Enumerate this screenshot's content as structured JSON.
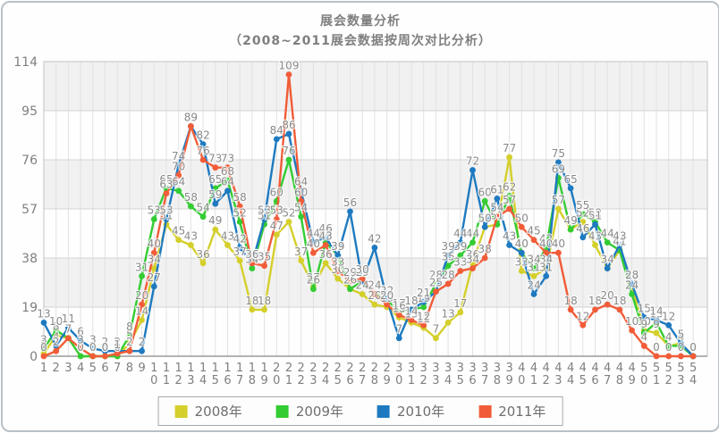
{
  "chart_data": {
    "type": "line",
    "title": "展会数量分析",
    "subtitle": "（2008~2011展会数据按周次对比分析）",
    "xlabel": "",
    "ylabel": "",
    "x_categories": [
      1,
      2,
      3,
      4,
      5,
      6,
      7,
      8,
      9,
      10,
      11,
      12,
      13,
      14,
      15,
      16,
      17,
      18,
      19,
      20,
      21,
      22,
      23,
      24,
      25,
      26,
      27,
      28,
      29,
      30,
      31,
      32,
      33,
      34,
      35,
      36,
      37,
      38,
      39,
      40,
      41,
      42,
      43,
      44,
      45,
      46,
      47,
      48,
      49,
      50,
      51,
      52,
      53,
      54
    ],
    "y_ticks": [
      0,
      19,
      38,
      57,
      76,
      95,
      114
    ],
    "ylim": [
      0,
      114
    ],
    "grid": true,
    "band_fill": "#f1f1f1",
    "gridline_color": "#e2e2e2",
    "tick_color": "#7f7f7f",
    "label_color": "#8a8a8a",
    "legend_position": "bottom",
    "series": [
      {
        "name": "2008年",
        "color": "#d4cf2a",
        "values": [
          1,
          8,
          7,
          0,
          0,
          0,
          0,
          5,
          14,
          34,
          51,
          45,
          43,
          36,
          49,
          43,
          37,
          18,
          18,
          47,
          52,
          37,
          27,
          36,
          30,
          26,
          24,
          20,
          19,
          15,
          13,
          11,
          7,
          13,
          17,
          36,
          50,
          51,
          77,
          33,
          31,
          34,
          57,
          49,
          52,
          43,
          34,
          41,
          27,
          10,
          9,
          4,
          5,
          0
        ]
      },
      {
        "name": "2009年",
        "color": "#33cc33",
        "values": [
          3,
          10,
          7,
          0,
          0,
          0,
          0,
          8,
          31,
          53,
          65,
          64,
          58,
          54,
          65,
          68,
          52,
          34,
          51,
          60,
          76,
          54,
          26,
          44,
          39,
          26,
          29,
          24,
          22,
          17,
          18,
          19,
          28,
          35,
          39,
          44,
          60,
          51,
          62,
          40,
          34,
          42,
          69,
          49,
          55,
          52,
          44,
          41,
          24,
          9,
          13,
          4,
          4,
          0
        ]
      },
      {
        "name": "2010年",
        "color": "#1e7ac0",
        "values": [
          13,
          4,
          11,
          6,
          3,
          2,
          2,
          2,
          2,
          27,
          53,
          74,
          89,
          82,
          59,
          64,
          42,
          36,
          53,
          84,
          86,
          64,
          44,
          46,
          39,
          56,
          29,
          42,
          22,
          7,
          18,
          21,
          25,
          39,
          44,
          72,
          50,
          61,
          43,
          40,
          24,
          31,
          75,
          65,
          46,
          51,
          34,
          43,
          28,
          15,
          14,
          12,
          5,
          0
        ]
      },
      {
        "name": "2011年",
        "color": "#f15c38",
        "values": [
          0,
          2,
          7,
          3,
          0,
          0,
          1,
          2,
          20,
          40,
          63,
          70,
          89,
          76,
          73,
          73,
          58,
          36,
          35,
          53,
          109,
          60,
          40,
          43,
          33,
          29,
          30,
          24,
          20,
          16,
          14,
          12,
          25,
          28,
          33,
          34,
          38,
          54,
          57,
          50,
          45,
          40,
          40,
          18,
          12,
          18,
          20,
          18,
          10,
          4,
          0,
          0,
          0,
          0
        ]
      }
    ]
  }
}
